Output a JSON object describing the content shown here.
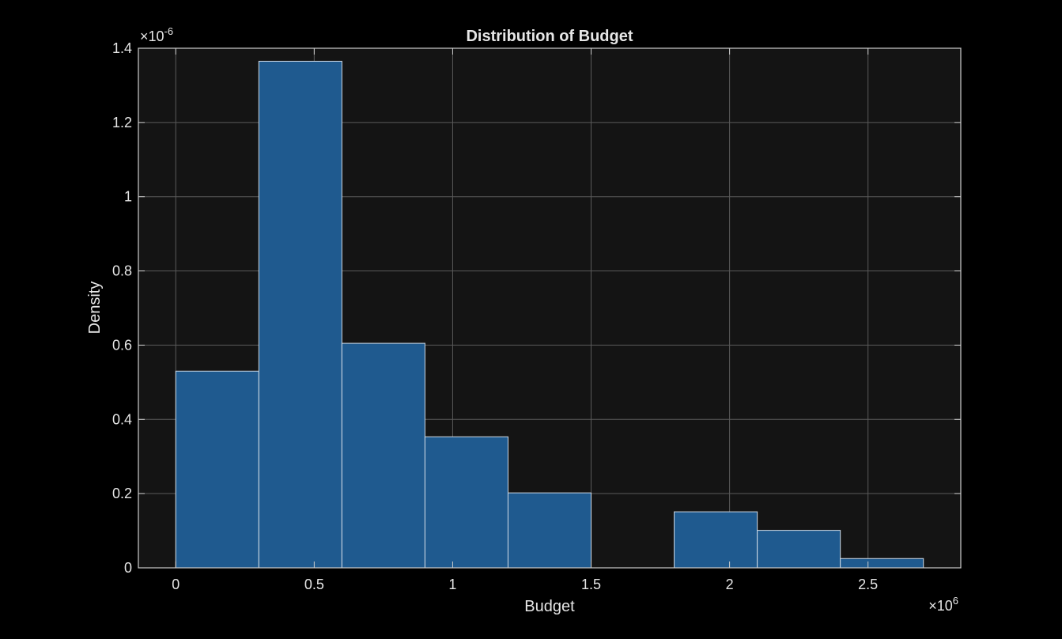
{
  "chart_data": {
    "type": "bar",
    "subtype": "histogram",
    "title": "Distribution of Budget",
    "xlabel": "Budget",
    "ylabel": "Density",
    "x_exponent_base": "×10",
    "x_exponent_power": "6",
    "y_exponent_base": "×10",
    "y_exponent_power": "-6",
    "x_scale_factor": 1000000,
    "y_scale_factor": 1e-06,
    "xlim": [
      -0.135,
      2.835
    ],
    "ylim": [
      0,
      1.4
    ],
    "grid": true,
    "bin_edges": [
      0,
      0.3,
      0.6,
      0.9,
      1.2,
      1.5,
      1.8,
      2.1,
      2.4,
      2.7
    ],
    "values": [
      0.53,
      1.365,
      0.605,
      0.353,
      0.202,
      0.0,
      0.151,
      0.101,
      0.025
    ],
    "x_ticks": [
      {
        "value": 0,
        "label": "0"
      },
      {
        "value": 0.5,
        "label": "0.5"
      },
      {
        "value": 1,
        "label": "1"
      },
      {
        "value": 1.5,
        "label": "1.5"
      },
      {
        "value": 2,
        "label": "2"
      },
      {
        "value": 2.5,
        "label": "2.5"
      }
    ],
    "y_ticks": [
      {
        "value": 0,
        "label": "0"
      },
      {
        "value": 0.2,
        "label": "0.2"
      },
      {
        "value": 0.4,
        "label": "0.4"
      },
      {
        "value": 0.6,
        "label": "0.6"
      },
      {
        "value": 0.8,
        "label": "0.8"
      },
      {
        "value": 1,
        "label": "1"
      },
      {
        "value": 1.2,
        "label": "1.2"
      },
      {
        "value": 1.4,
        "label": "1.4"
      }
    ],
    "colors": {
      "figure_background": "#000000",
      "axes_background": "#141414",
      "bar_fill": "#1f5a8f",
      "bar_edge": "#d0dbe6",
      "grid": "#5a5a5a",
      "axis": "#cccccc",
      "text": "#e6e6e6"
    }
  }
}
